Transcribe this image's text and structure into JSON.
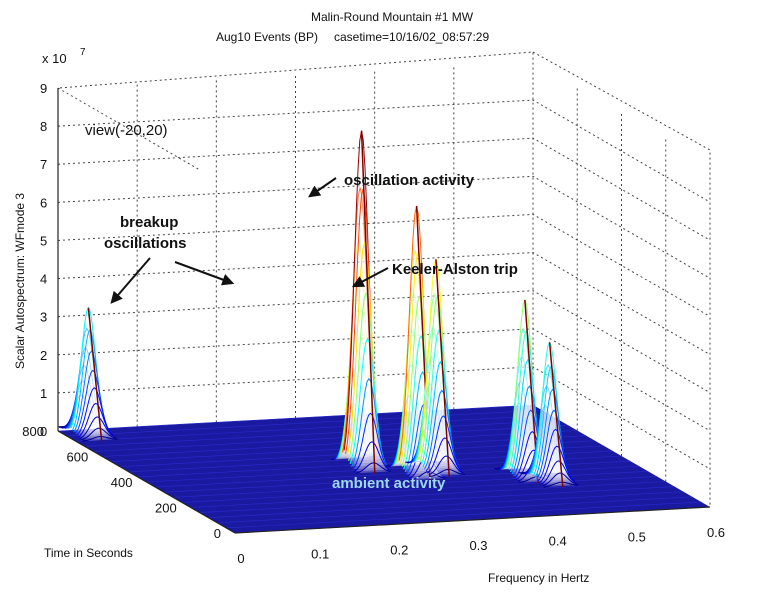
{
  "chart_data": {
    "type": "surface",
    "title": "Malin-Round Mountain #1 MW",
    "subtitle_left": "Aug10 Events (BP)",
    "subtitle_right": "casetime=10/16/02_08:57:29",
    "zlabel": "Scalar Autospectrum: WFmode 3",
    "xlabel": "Frequency in Hertz",
    "ylabel": "Time in Seconds",
    "zscale_label": "x 10",
    "zscale_exponent": "7",
    "view_text": "view(-20,20)",
    "xlim": [
      0,
      0.6
    ],
    "ylim": [
      0,
      800
    ],
    "zlim": [
      0,
      9
    ],
    "xticks": [
      "0",
      "0.1",
      "0.2",
      "0.3",
      "0.4",
      "0.5",
      "0.6"
    ],
    "yticks": [
      "0",
      "200",
      "400",
      "600",
      "800"
    ],
    "zticks": [
      "0",
      "1",
      "2",
      "3",
      "4",
      "5",
      "6",
      "7",
      "8",
      "9"
    ],
    "peaks": [
      {
        "freq": 0.03,
        "time": 770,
        "height": 3.3
      },
      {
        "freq": 0.28,
        "time": 430,
        "height": 8.8
      },
      {
        "freq": 0.33,
        "time": 360,
        "height": 7.0
      },
      {
        "freq": 0.36,
        "time": 380,
        "height": 5.5
      },
      {
        "freq": 0.45,
        "time": 300,
        "height": 4.6
      },
      {
        "freq": 0.47,
        "time": 260,
        "height": 3.6
      }
    ],
    "annotations": {
      "breakup": [
        "breakup",
        "oscillations"
      ],
      "oscillation": "oscillation activity",
      "keeler": "Keeler-Alston trip",
      "ambient": "ambient activity"
    },
    "colors": {
      "floor": "#1a1aa0",
      "mesh": "#2a2ad0"
    }
  }
}
